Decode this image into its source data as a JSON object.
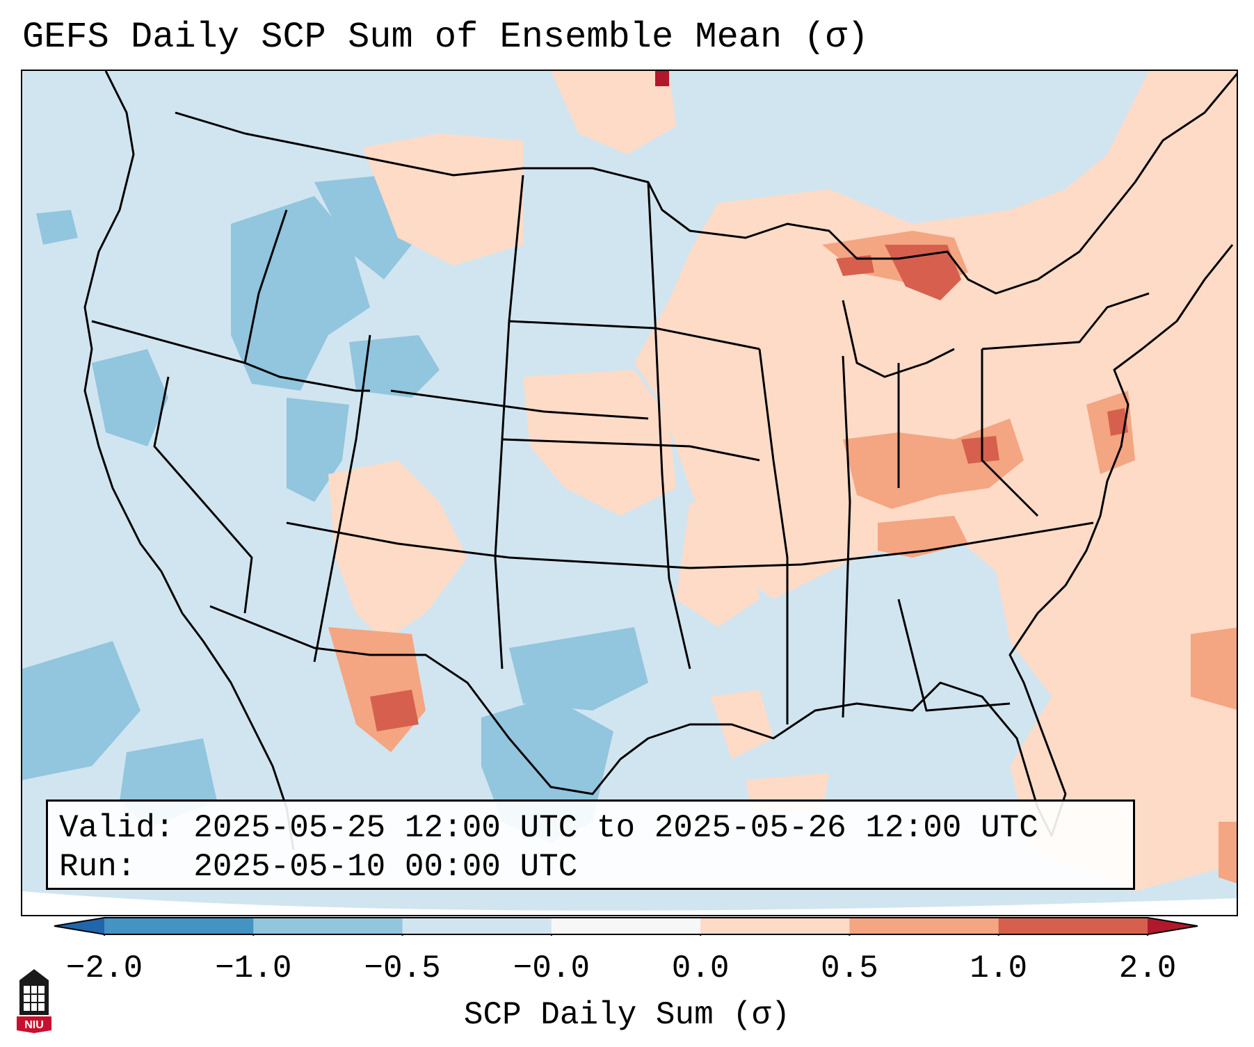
{
  "title": "GEFS Daily SCP Sum of Ensemble Mean (σ)",
  "info": {
    "valid": "Valid: 2025-05-25 12:00 UTC to 2025-05-26 12:00 UTC",
    "run": "Run:   2025-05-10 00:00 UTC"
  },
  "colorbar": {
    "label": "SCP Daily Sum (σ)",
    "ticks": [
      "−2.0",
      "−1.0",
      "−0.5",
      "−0.0",
      "0.0",
      "0.5",
      "1.0",
      "2.0"
    ],
    "colors": [
      "#2166ac",
      "#4393c3",
      "#92c5de",
      "#d1e5f0",
      "#fddbc7",
      "#f4a582",
      "#d6604d",
      "#b2182b"
    ],
    "extend": "both"
  },
  "map": {
    "region": "Contiguous United States",
    "base_color": "#d1e5f0",
    "anomaly_regions": [
      {
        "name": "Great Lakes / Michigan",
        "level": "1.0"
      },
      {
        "name": "Ohio Valley / Kentucky / West Virginia",
        "level": "0.5"
      },
      {
        "name": "Mid-Atlantic / New Jersey",
        "level": "0.5"
      },
      {
        "name": "Southwest Texas / New Mexico",
        "level": "1.0"
      },
      {
        "name": "Idaho / Northwest",
        "level": "-0.5"
      },
      {
        "name": "South Texas",
        "level": "-0.5"
      }
    ]
  },
  "logo": {
    "text": "NIU"
  }
}
